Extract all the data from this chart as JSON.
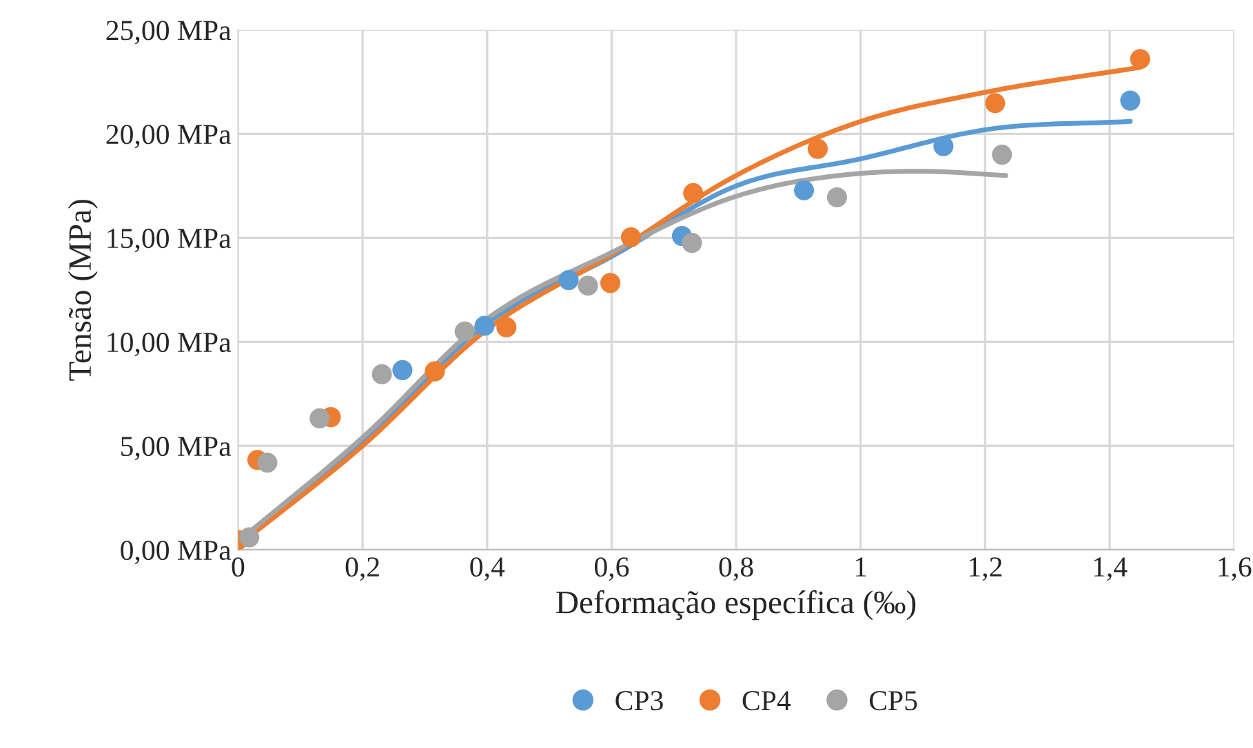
{
  "chart_data": {
    "type": "scatter",
    "xlabel": "Deformação específica (‰)",
    "ylabel": "Tensão (MPa)",
    "xlim": [
      0,
      1.6
    ],
    "xticks": [
      0,
      {
        "value": 0.2,
        "label": "0,2"
      },
      {
        "value": 0.4,
        "label": "0,4"
      },
      {
        "value": 0.6,
        "label": "0,6"
      },
      {
        "value": 0.8,
        "label": "0,8"
      },
      1,
      {
        "value": 1.2,
        "label": "1,2"
      },
      {
        "value": 1.4,
        "label": "1,4"
      },
      {
        "value": 1.6,
        "label": "1,6"
      }
    ],
    "ylim": [
      0,
      25
    ],
    "yticks": [
      {
        "value": 0,
        "label": "0,00 MPa"
      },
      {
        "value": 5,
        "label": "5,00 MPa"
      },
      {
        "value": 10,
        "label": "10,00 MPa"
      },
      {
        "value": 15,
        "label": "15,00 MPa"
      },
      {
        "value": 20,
        "label": "20,00 MPa"
      },
      {
        "value": 25,
        "label": "25,00 MPa"
      }
    ],
    "grid": true,
    "legend": "bottom",
    "marker": "circle",
    "series": [
      {
        "type": "line",
        "marker": "none",
        "color": "#5b9bd5",
        "x": [
          0,
          0.2,
          0.4,
          0.6,
          0.8,
          1.0,
          1.2,
          1.433
        ],
        "values": [
          0.3,
          5.2,
          10.9,
          14.1,
          17.5,
          18.8,
          20.2,
          20.6
        ]
      },
      {
        "type": "line",
        "marker": "none",
        "color": "#ed7d31",
        "x": [
          0,
          0.2,
          0.4,
          0.6,
          0.8,
          1.0,
          1.2,
          1.449
        ],
        "values": [
          0.2,
          5.0,
          10.6,
          14.2,
          18.0,
          20.6,
          22.0,
          23.2
        ]
      },
      {
        "type": "line",
        "marker": "none",
        "color": "#a5a5a5",
        "x": [
          0,
          0.2,
          0.4,
          0.6,
          0.8,
          1.0,
          1.1,
          1.233
        ],
        "values": [
          0.4,
          5.4,
          11.1,
          14.3,
          17.0,
          18.1,
          18.2,
          18.0
        ]
      },
      {
        "name": "CP3",
        "color": "#5b9bd5",
        "x": [
          0.264,
          0.396,
          0.531,
          0.713,
          0.909,
          1.133,
          1.433
        ],
        "values": [
          8.64,
          10.77,
          12.97,
          15.09,
          17.29,
          19.41,
          21.6
        ]
      },
      {
        "name": "CP4",
        "color": "#ed7d31",
        "x": [
          0,
          0.031,
          0.149,
          0.316,
          0.431,
          0.598,
          0.631,
          0.731,
          0.931,
          1.216,
          1.449
        ],
        "values": [
          0.47,
          4.32,
          6.38,
          8.58,
          10.7,
          12.83,
          15.03,
          17.15,
          19.28,
          21.48,
          23.6
        ]
      },
      {
        "name": "CP5",
        "color": "#a5a5a5",
        "x": [
          0.018,
          0.047,
          0.131,
          0.231,
          0.364,
          0.562,
          0.729,
          0.962,
          1.227
        ],
        "values": [
          0.6,
          4.19,
          6.32,
          8.44,
          10.5,
          12.7,
          14.76,
          16.95,
          19.0
        ]
      }
    ]
  }
}
